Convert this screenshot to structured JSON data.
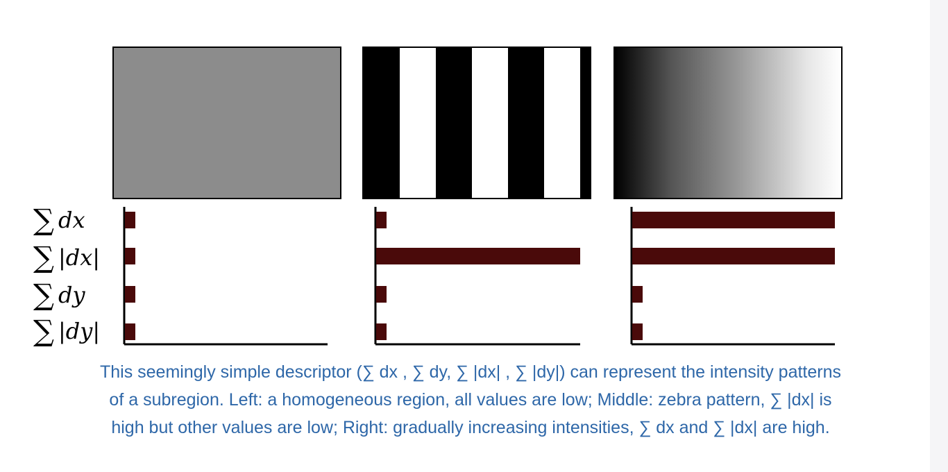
{
  "panels": [
    {
      "name": "homogeneous"
    },
    {
      "name": "zebra"
    },
    {
      "name": "gradient"
    }
  ],
  "row_labels": [
    {
      "sigma": "∑",
      "text": "dx"
    },
    {
      "sigma": "∑",
      "text": "|dx|"
    },
    {
      "sigma": "∑",
      "text": "dy"
    },
    {
      "sigma": "∑",
      "text": "|dy|"
    }
  ],
  "chart_data": [
    {
      "type": "bar",
      "orientation": "horizontal",
      "categories": [
        "∑ dx",
        "∑ |dx|",
        "∑ dy",
        "∑ |dy|"
      ],
      "values": [
        0.05,
        0.05,
        0.05,
        0.05
      ],
      "xlim": [
        0,
        1
      ]
    },
    {
      "type": "bar",
      "orientation": "horizontal",
      "categories": [
        "∑ dx",
        "∑ |dx|",
        "∑ dy",
        "∑ |dy|"
      ],
      "values": [
        0.05,
        1.0,
        0.05,
        0.05
      ],
      "xlim": [
        0,
        1
      ]
    },
    {
      "type": "bar",
      "orientation": "horizontal",
      "categories": [
        "∑ dx",
        "∑ |dx|",
        "∑ dy",
        "∑ |dy|"
      ],
      "values": [
        1.0,
        1.0,
        0.05,
        0.05
      ],
      "xlim": [
        0,
        1
      ]
    }
  ],
  "colors": {
    "bar": "#4a0a0a",
    "caption": "#2e67a8",
    "homogeneous": "#8c8c8c"
  },
  "caption": {
    "line1": "This seemingly simple descriptor (∑ dx , ∑ dy, ∑ |dx| , ∑ |dy|) can represent the intensity patterns",
    "line2": "of a subregion. Left: a homogeneous region, all values are low; Middle: zebra pattern, ∑ |dx| is",
    "line3": "high but other values are low; Right: gradually increasing intensities, ∑ dx and ∑ |dx| are high."
  }
}
